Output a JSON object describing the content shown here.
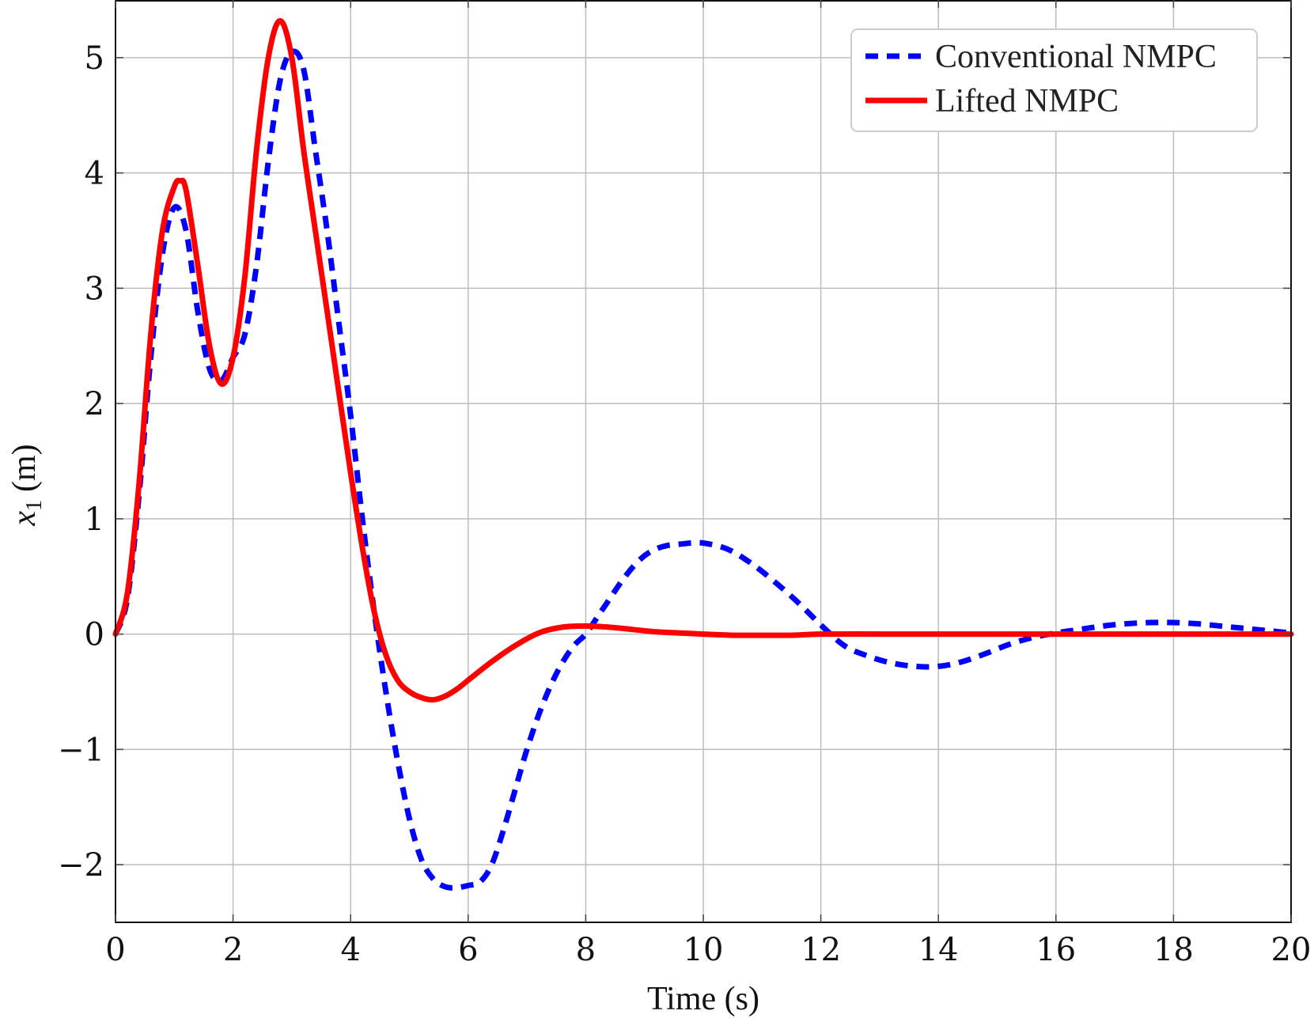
{
  "chart_data": {
    "type": "line",
    "title": "",
    "xlabel": "Time (s)",
    "ylabel_var": "x",
    "ylabel_sub": "1",
    "ylabel_unit": "(m)",
    "xlim": [
      0,
      20
    ],
    "ylim": [
      -2.5,
      5.5
    ],
    "xticks": [
      0,
      2,
      4,
      6,
      8,
      10,
      12,
      14,
      16,
      18,
      20
    ],
    "yticks": [
      -2,
      -1,
      0,
      1,
      2,
      3,
      4,
      5
    ],
    "ytick_labels": [
      "−2",
      "−1",
      "0",
      "1",
      "2",
      "3",
      "4",
      "5"
    ],
    "grid": true,
    "legend_position": "top-right",
    "series": [
      {
        "name": "Conventional NMPC",
        "color": "#0000ff",
        "style": "dashed",
        "x": [
          0,
          0.2,
          0.4,
          0.6,
          0.8,
          1.0,
          1.2,
          1.4,
          1.6,
          1.8,
          2.0,
          2.2,
          2.4,
          2.6,
          2.8,
          3.0,
          3.2,
          3.4,
          3.6,
          3.8,
          4.0,
          4.2,
          4.4,
          4.6,
          4.8,
          5.0,
          5.2,
          5.4,
          5.6,
          5.8,
          6.0,
          6.2,
          6.4,
          6.6,
          6.8,
          7.0,
          7.2,
          7.4,
          7.6,
          7.8,
          8.0,
          8.2,
          8.4,
          8.6,
          8.8,
          9.0,
          9.2,
          9.4,
          9.6,
          9.8,
          10.0,
          10.4,
          10.8,
          11.2,
          11.6,
          12.0,
          12.4,
          12.8,
          13.2,
          13.6,
          14.0,
          14.4,
          14.8,
          15.2,
          15.6,
          16.0,
          16.4,
          16.8,
          17.2,
          17.6,
          18.0,
          18.4,
          18.8,
          19.2,
          19.6,
          20.0
        ],
        "y": [
          0,
          0.3,
          1.2,
          2.4,
          3.3,
          3.7,
          3.5,
          2.8,
          2.3,
          2.2,
          2.4,
          2.6,
          3.2,
          4.1,
          4.8,
          5.05,
          4.9,
          4.2,
          3.5,
          2.7,
          1.9,
          1.0,
          0.2,
          -0.5,
          -1.1,
          -1.6,
          -1.95,
          -2.12,
          -2.19,
          -2.2,
          -2.18,
          -2.15,
          -2.0,
          -1.7,
          -1.35,
          -1.0,
          -0.7,
          -0.45,
          -0.25,
          -0.1,
          0.0,
          0.15,
          0.3,
          0.45,
          0.58,
          0.68,
          0.74,
          0.77,
          0.78,
          0.79,
          0.79,
          0.74,
          0.62,
          0.46,
          0.28,
          0.08,
          -0.1,
          -0.19,
          -0.25,
          -0.28,
          -0.28,
          -0.24,
          -0.17,
          -0.09,
          -0.03,
          0.01,
          0.04,
          0.07,
          0.09,
          0.1,
          0.1,
          0.09,
          0.07,
          0.05,
          0.03,
          0.01
        ]
      },
      {
        "name": "Lifted NMPC",
        "color": "#ff0000",
        "style": "solid",
        "x": [
          0,
          0.2,
          0.4,
          0.6,
          0.8,
          1.0,
          1.1,
          1.2,
          1.4,
          1.6,
          1.8,
          2.0,
          2.2,
          2.4,
          2.6,
          2.8,
          3.0,
          3.2,
          3.4,
          3.6,
          3.8,
          4.0,
          4.2,
          4.4,
          4.6,
          4.8,
          5.0,
          5.2,
          5.4,
          5.6,
          5.8,
          6.0,
          6.4,
          6.8,
          7.2,
          7.6,
          8.0,
          8.4,
          8.8,
          9.2,
          9.6,
          10.0,
          10.5,
          11.0,
          11.5,
          12.0,
          13.0,
          14.0,
          15.0,
          16.0,
          17.0,
          18.0,
          19.0,
          20.0
        ],
        "y": [
          0,
          0.35,
          1.3,
          2.6,
          3.5,
          3.88,
          3.93,
          3.85,
          3.2,
          2.5,
          2.17,
          2.4,
          3.1,
          4.2,
          5.0,
          5.32,
          5.0,
          4.2,
          3.5,
          2.8,
          2.1,
          1.4,
          0.75,
          0.2,
          -0.18,
          -0.4,
          -0.5,
          -0.55,
          -0.57,
          -0.54,
          -0.48,
          -0.4,
          -0.24,
          -0.1,
          0.01,
          0.06,
          0.07,
          0.06,
          0.04,
          0.02,
          0.01,
          0.0,
          -0.01,
          -0.01,
          -0.01,
          0.0,
          0.0,
          0.0,
          0.0,
          0.0,
          0.0,
          0.0,
          0.0,
          0.0
        ]
      }
    ]
  }
}
